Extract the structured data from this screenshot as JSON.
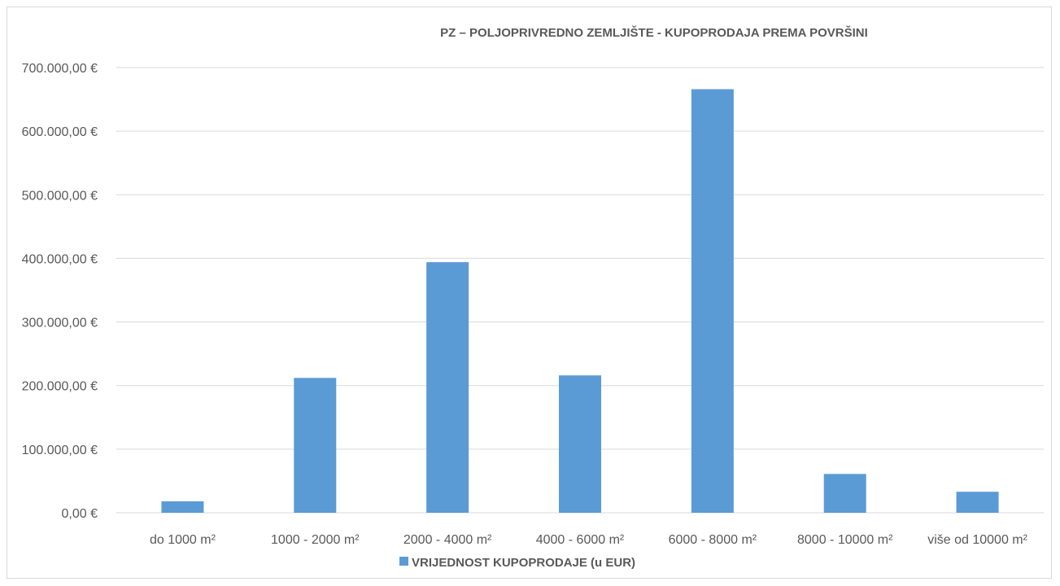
{
  "chart_data": {
    "type": "bar",
    "title": "PZ – POLJOPRIVREDNO ZEMLJIŠTE - KUPOPRODAJA PREMA POVRŠINI",
    "categories": [
      "do 1000 m²",
      "1000 - 2000 m²",
      "2000 - 4000 m²",
      "4000 - 6000 m²",
      "6000 - 8000 m²",
      "8000 - 10000 m²",
      "više od 10000 m²"
    ],
    "series": [
      {
        "name": "VRIJEDNOST KUPOPRODAJE (u EUR)",
        "values": [
          18000,
          212000,
          394000,
          216000,
          666000,
          61000,
          33000
        ],
        "color": "#5b9bd5"
      }
    ],
    "ylim": [
      0,
      700000
    ],
    "yticks": [
      0,
      100000,
      200000,
      300000,
      400000,
      500000,
      600000,
      700000
    ],
    "ytick_labels": [
      "0,00 €",
      "100.000,00 €",
      "200.000,00 €",
      "300.000,00 €",
      "400.000,00 €",
      "500.000,00 €",
      "600.000,00 €",
      "700.000,00 €"
    ],
    "grid": true,
    "legend": "bottom",
    "colors": {
      "bar": "#5b9bd5",
      "grid": "#d9d9d9",
      "text": "#595959"
    }
  }
}
